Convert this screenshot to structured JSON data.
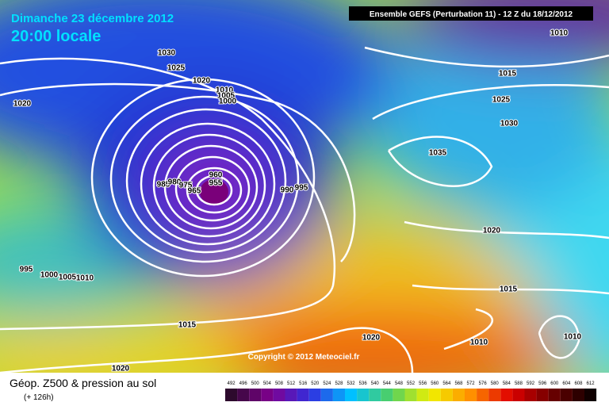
{
  "header": {
    "date": "Dimanche 23 décembre 2012",
    "time": "20:00 locale",
    "model": "Ensemble GEFS (Perturbation 11)  -  12 Z du 18/12/2012"
  },
  "isobar_labels": [
    "1010",
    "1030",
    "1025",
    "1020",
    "1020",
    "1010",
    "1005",
    "1000",
    "1015",
    "1025",
    "1030",
    "1035",
    "960",
    "955",
    "985",
    "980",
    "975",
    "965",
    "990",
    "995",
    "1020",
    "995",
    "1000",
    "1005",
    "1010",
    "1015",
    "1015",
    "1020",
    "1010",
    "1010",
    "1020"
  ],
  "copyright": "Copyright © 2012 Meteociel.fr",
  "legend": {
    "title": "Géop. Z500 & pression au sol",
    "lead": "(+ 126h)",
    "scale": [
      492,
      496,
      500,
      504,
      508,
      512,
      516,
      520,
      524,
      528,
      532,
      536,
      540,
      544,
      548,
      552,
      556,
      560,
      564,
      568,
      572,
      576,
      580,
      584,
      588,
      592,
      596,
      600,
      604,
      608,
      612
    ]
  }
}
